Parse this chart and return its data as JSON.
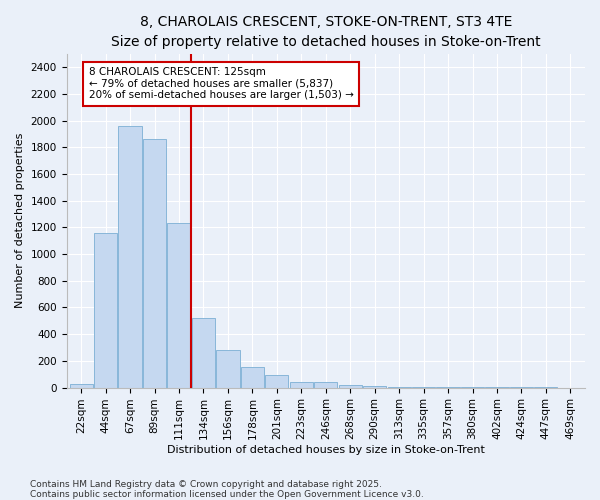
{
  "title": "8, CHAROLAIS CRESCENT, STOKE-ON-TRENT, ST3 4TE",
  "subtitle": "Size of property relative to detached houses in Stoke-on-Trent",
  "xlabel": "Distribution of detached houses by size in Stoke-on-Trent",
  "ylabel": "Number of detached properties",
  "bins": [
    "22sqm",
    "44sqm",
    "67sqm",
    "89sqm",
    "111sqm",
    "134sqm",
    "156sqm",
    "178sqm",
    "201sqm",
    "223sqm",
    "246sqm",
    "268sqm",
    "290sqm",
    "313sqm",
    "335sqm",
    "357sqm",
    "380sqm",
    "402sqm",
    "424sqm",
    "447sqm",
    "469sqm"
  ],
  "values": [
    25,
    1160,
    1960,
    1860,
    1230,
    520,
    280,
    155,
    95,
    45,
    40,
    20,
    15,
    5,
    3,
    2,
    1,
    1,
    1,
    1,
    0
  ],
  "bar_color": "#c5d8f0",
  "bar_edgecolor": "#7bafd4",
  "vline_x": 4.5,
  "vline_color": "#cc0000",
  "annotation_line1": "8 CHAROLAIS CRESCENT: 125sqm",
  "annotation_line2": "← 79% of detached houses are smaller (5,837)",
  "annotation_line3": "20% of semi-detached houses are larger (1,503) →",
  "annotation_box_edgecolor": "#cc0000",
  "annotation_box_facecolor": "#ffffff",
  "ylim": [
    0,
    2500
  ],
  "yticks": [
    0,
    200,
    400,
    600,
    800,
    1000,
    1200,
    1400,
    1600,
    1800,
    2000,
    2200,
    2400
  ],
  "background_color": "#eaf0f9",
  "footer_line1": "Contains HM Land Registry data © Crown copyright and database right 2025.",
  "footer_line2": "Contains public sector information licensed under the Open Government Licence v3.0.",
  "title_fontsize": 10,
  "subtitle_fontsize": 9,
  "axis_label_fontsize": 8,
  "tick_fontsize": 7.5,
  "annotation_fontsize": 7.5,
  "footer_fontsize": 6.5
}
